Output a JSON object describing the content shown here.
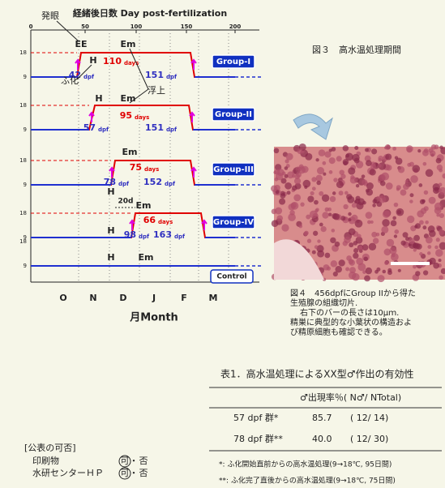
{
  "figure3": {
    "title": "経緒後日数 Day post-fertilization",
    "top_ticks": [
      "0",
      "50",
      "100",
      "150",
      "200"
    ],
    "y_ticks": [
      "18",
      "9"
    ],
    "months": [
      "O",
      "N",
      "D",
      "J",
      "F",
      "M"
    ],
    "x_label": "月Month",
    "annotations": {
      "eyed": "発眼",
      "hatch": "ふ化",
      "swimup": "浮上"
    },
    "marks": {
      "ee": "EE",
      "h": "H",
      "em": "Em"
    },
    "unit_days": "days",
    "unit_dpf": "dpf",
    "gap": "20d",
    "groups": [
      {
        "name": "Group-I",
        "duration": 110,
        "start": 42,
        "end": 151
      },
      {
        "name": "Group-II",
        "duration": 95,
        "start": 57,
        "end": 151
      },
      {
        "name": "Group-III",
        "duration": 75,
        "start": 78,
        "end": 152
      },
      {
        "name": "Group-IV",
        "duration": 66,
        "start": 98,
        "end": 163
      }
    ],
    "control": "Control",
    "caption": "図３　高水温処理期間"
  },
  "figure4": {
    "caption": [
      "図４　456dpfにGroup IIから得た",
      "生殖腺の組織切片.",
      "右下のバーの長さは10μｍ.",
      "精巣に典型的な小葉状の構造およ",
      "び精原細胞も確認できる。"
    ]
  },
  "table": {
    "title": "表1．高水温処理によるXX型♂作出の有効性",
    "header": "♂出現率％( N♂/ NTotal)",
    "rows": [
      [
        "57 dpf 群*",
        "85.7",
        "( 12/ 14)"
      ],
      [
        "78 dpf 群**",
        "40.0",
        "( 12/ 30)"
      ]
    ],
    "notes": [
      "*: ふ化開始直前からの高水温処理(9→18℃, 95日間)",
      "**: ふ化完了直後からの高水温処理(9→18℃, 75日間)"
    ]
  },
  "publication": {
    "title": "[公表の可否]",
    "items": [
      "印刷物",
      "水研センターＨＰ"
    ],
    "yes": "可",
    "sep": "・",
    "no": "否"
  }
}
